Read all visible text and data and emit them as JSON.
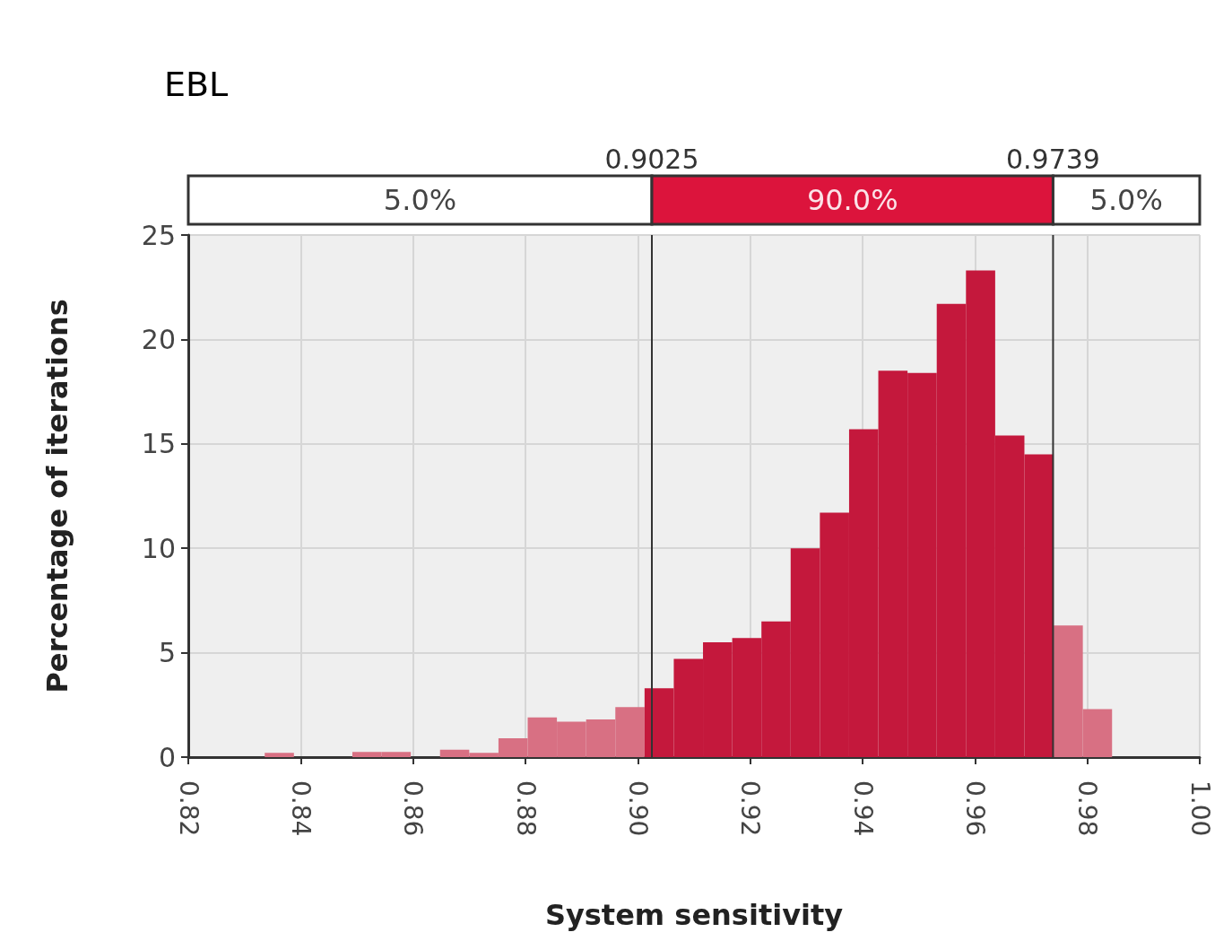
{
  "chart_data": {
    "type": "histogram",
    "title": "EBL",
    "xlabel": "System sensitivity",
    "ylabel": "Percentage of iterations",
    "bins": [
      0.8336,
      0.8388,
      0.844,
      0.8492,
      0.8544,
      0.8596,
      0.8648,
      0.87,
      0.8752,
      0.8804,
      0.8856,
      0.8908,
      0.896,
      0.9012,
      0.9064,
      0.9116,
      0.9168,
      0.922,
      0.9272,
      0.9324,
      0.9376,
      0.9428,
      0.948,
      0.9532,
      0.9584,
      0.9636,
      0.9688,
      0.974,
      0.9792,
      0.9844
    ],
    "values": [
      0.2,
      0,
      0,
      0.25,
      0.25,
      0,
      0.35,
      0.2,
      0.9,
      1.9,
      1.7,
      1.8,
      2.4,
      3.3,
      4.7,
      5.5,
      5.7,
      6.5,
      10,
      11.7,
      15.7,
      18.5,
      18.4,
      21.7,
      23.3,
      15.4,
      14.5,
      6.3,
      2.3
    ],
    "colors": [
      "#d87083",
      "#d87083",
      "#d87083",
      "#d87083",
      "#d87083",
      "#d87083",
      "#d87083",
      "#d87083",
      "#d87083",
      "#d87083",
      "#d87083",
      "#d87083",
      "#d87083",
      "#c4183c",
      "#c4183c",
      "#c4183c",
      "#c4183c",
      "#c4183c",
      "#c4183c",
      "#c4183c",
      "#c4183c",
      "#c4183c",
      "#c4183c",
      "#c4183c",
      "#c4183c",
      "#c4183c",
      "#c4183c",
      "#d87083",
      "#d87083"
    ],
    "xlim": [
      0.82,
      1.0
    ],
    "xticks": [
      {
        "value": 0.82,
        "label": "0.82"
      },
      {
        "value": 0.84,
        "label": "0.84"
      },
      {
        "value": 0.86,
        "label": "0.86"
      },
      {
        "value": 0.88,
        "label": "0.88"
      },
      {
        "value": 0.9,
        "label": "0.90"
      },
      {
        "value": 0.92,
        "label": "0.92"
      },
      {
        "value": 0.94,
        "label": "0.94"
      },
      {
        "value": 0.96,
        "label": "0.96"
      },
      {
        "value": 0.98,
        "label": "0.98"
      },
      {
        "value": 1.0,
        "label": "1.00"
      }
    ],
    "ylim": [
      0,
      25
    ],
    "yticks": [
      0,
      5,
      10,
      15,
      20,
      25
    ],
    "grid": true,
    "ref_lines": [
      {
        "axis": "x",
        "value": 0.9025,
        "label": "0.9025"
      },
      {
        "axis": "x",
        "value": 0.9739,
        "label": "0.9739"
      }
    ],
    "annotations": [
      "5.0%",
      "90.0%",
      "5.0%"
    ]
  }
}
